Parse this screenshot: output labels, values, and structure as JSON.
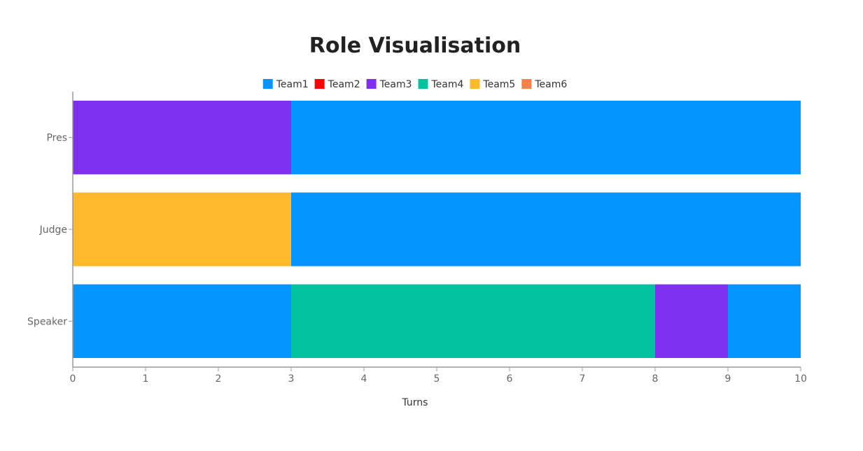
{
  "chart_data": {
    "type": "bar",
    "orientation": "horizontal",
    "stacked": true,
    "title": "Role Visualisation",
    "xlabel": "Turns",
    "ylabel": "",
    "xlim": [
      0,
      10
    ],
    "x_ticks": [
      "0",
      "1",
      "2",
      "3",
      "4",
      "5",
      "6",
      "7",
      "8",
      "9",
      "10"
    ],
    "categories": [
      "Pres",
      "Judge",
      "Speaker"
    ],
    "legend_position": "top",
    "grid": false,
    "legend": [
      {
        "name": "Team1",
        "color": "#0394ff"
      },
      {
        "name": "Team2",
        "color": "#ff0000"
      },
      {
        "name": "Team3",
        "color": "#7e2ff0"
      },
      {
        "name": "Team4",
        "color": "#00c3a0"
      },
      {
        "name": "Team5",
        "color": "#ffb92a"
      },
      {
        "name": "Team6",
        "color": "#ff8145"
      }
    ],
    "segments": [
      {
        "category": "Pres",
        "team": "Team3",
        "start": 0,
        "end": 3
      },
      {
        "category": "Pres",
        "team": "Team1",
        "start": 3,
        "end": 10
      },
      {
        "category": "Judge",
        "team": "Team5",
        "start": 0,
        "end": 3
      },
      {
        "category": "Judge",
        "team": "Team1",
        "start": 3,
        "end": 10
      },
      {
        "category": "Speaker",
        "team": "Team1",
        "start": 0,
        "end": 3
      },
      {
        "category": "Speaker",
        "team": "Team4",
        "start": 3,
        "end": 8
      },
      {
        "category": "Speaker",
        "team": "Team3",
        "start": 8,
        "end": 9
      },
      {
        "category": "Speaker",
        "team": "Team1",
        "start": 9,
        "end": 10
      }
    ]
  }
}
